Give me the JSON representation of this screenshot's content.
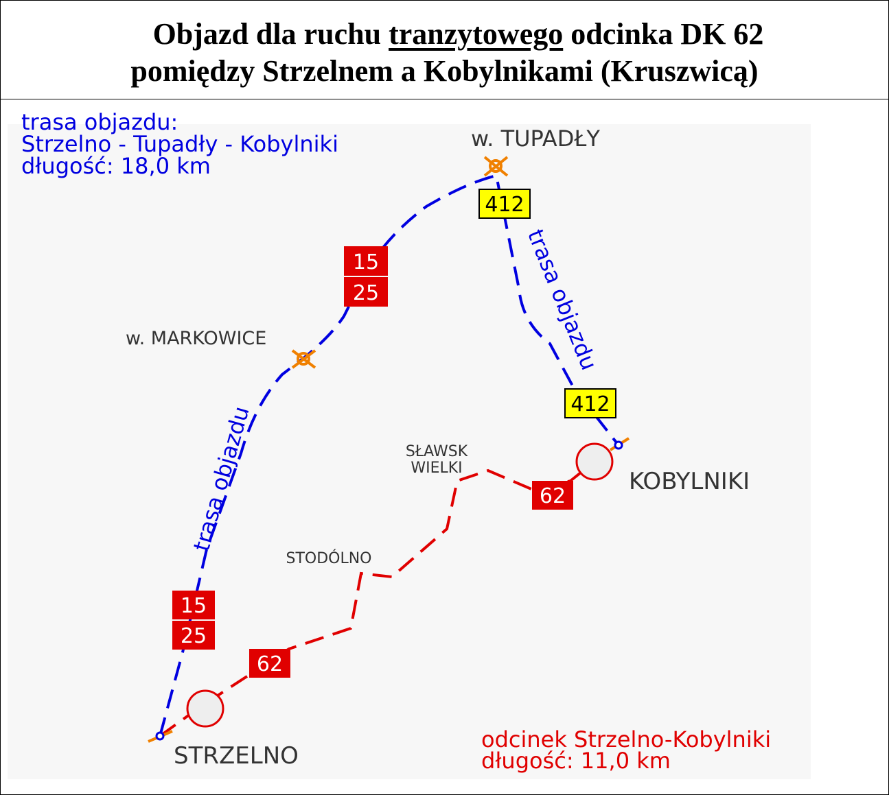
{
  "header": {
    "title_line1": [
      "Objazd dla ruchu",
      "tranzytowego",
      "odcinka DK 62"
    ],
    "title_line2": "pomiędzy Strzelnem a Kobylnikami (Kruszwicą)"
  },
  "map": {
    "detour_info": [
      "trasa objazdu:",
      "Strzelno - Tupadły - Kobylniki",
      "długość: 18,0 km"
    ],
    "section_info": [
      "odcinek Strzelno-Kobylniki",
      "długość: 11,0 km"
    ],
    "places": {
      "tupadly": "w. TUPADŁY",
      "markowice": "w. MARKOWICE",
      "slawsk": [
        "SŁAWSK",
        "WIELKI"
      ],
      "stodolno": "STODÓLNO",
      "kobylniki": "KOBYLNIKI",
      "strzelno": "STRZELNO"
    },
    "route_labels": [
      "trasa objazdu",
      "trasa objazdu"
    ],
    "signs_412": [
      "412",
      "412"
    ],
    "signs_limit": [
      {
        "top": "15",
        "bottom": "25"
      },
      {
        "top": "15",
        "bottom": "25"
      }
    ],
    "signs_62": [
      "62",
      "62"
    ]
  }
}
